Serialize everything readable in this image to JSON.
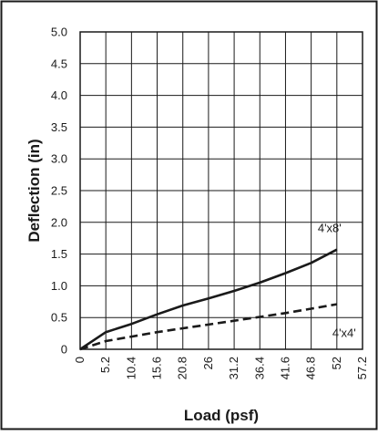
{
  "chart_data": {
    "type": "line",
    "xlabel": "Load (psf)",
    "ylabel": "Deflection (in)",
    "xlim": [
      0,
      57.2
    ],
    "ylim": [
      0,
      5.0
    ],
    "x_ticks": [
      "0",
      "5.2",
      "10.4",
      "15.6",
      "20.8",
      "26",
      "31.2",
      "36.4",
      "41.6",
      "46.8",
      "52",
      "57.2"
    ],
    "y_ticks": [
      "0",
      "0.5",
      "1.0",
      "1.5",
      "2.0",
      "2.5",
      "3.0",
      "3.5",
      "4.0",
      "4.5",
      "5.0"
    ],
    "grid": true,
    "series": [
      {
        "name": "4'x8'",
        "line_style": "solid",
        "color": "#1a1a1a",
        "points": [
          [
            0,
            0
          ],
          [
            5.2,
            0.27
          ],
          [
            10.4,
            0.4
          ],
          [
            15.6,
            0.55
          ],
          [
            20.8,
            0.69
          ],
          [
            26,
            0.8
          ],
          [
            31.2,
            0.92
          ],
          [
            36.4,
            1.05
          ],
          [
            41.6,
            1.2
          ],
          [
            46.8,
            1.36
          ],
          [
            52,
            1.57
          ]
        ]
      },
      {
        "name": "4'x4'",
        "line_style": "dashed",
        "color": "#1a1a1a",
        "points": [
          [
            0,
            0
          ],
          [
            5.2,
            0.13
          ],
          [
            10.4,
            0.2
          ],
          [
            15.6,
            0.27
          ],
          [
            20.8,
            0.33
          ],
          [
            26,
            0.39
          ],
          [
            31.2,
            0.45
          ],
          [
            36.4,
            0.51
          ],
          [
            41.6,
            0.57
          ],
          [
            46.8,
            0.64
          ],
          [
            52,
            0.71
          ]
        ]
      }
    ]
  }
}
